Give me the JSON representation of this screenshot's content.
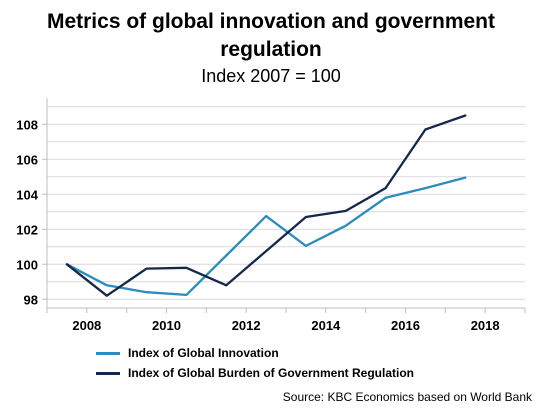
{
  "chart_data": {
    "type": "line",
    "title": "Metrics of global innovation and government regulation",
    "subtitle": "Index 2007 = 100",
    "x": [
      2007.5,
      2008.5,
      2009.5,
      2010.5,
      2011.5,
      2012.5,
      2013.5,
      2014.5,
      2015.5,
      2016.5,
      2017.5
    ],
    "series": [
      {
        "name": "Index of Global Innovation",
        "color": "#2b8cbe",
        "values": [
          100.0,
          98.8,
          98.4,
          98.25,
          100.5,
          102.75,
          101.05,
          102.2,
          103.8,
          104.35,
          104.95
        ]
      },
      {
        "name": "Index of Global Burden of Government Regulation",
        "color": "#14284b",
        "values": [
          100.0,
          98.2,
          99.75,
          99.8,
          98.8,
          100.75,
          102.7,
          103.05,
          104.35,
          107.7,
          108.5
        ]
      }
    ],
    "xticks": [
      2008,
      2010,
      2012,
      2014,
      2016,
      2018
    ],
    "yticks": [
      98,
      100,
      102,
      104,
      106,
      108
    ],
    "xlim": [
      2007,
      2019
    ],
    "ylim": [
      97.5,
      109.5
    ],
    "grid": "horizontal",
    "legend_position": "bottom-left",
    "source": "Source: KBC Economics based on World Bank"
  }
}
